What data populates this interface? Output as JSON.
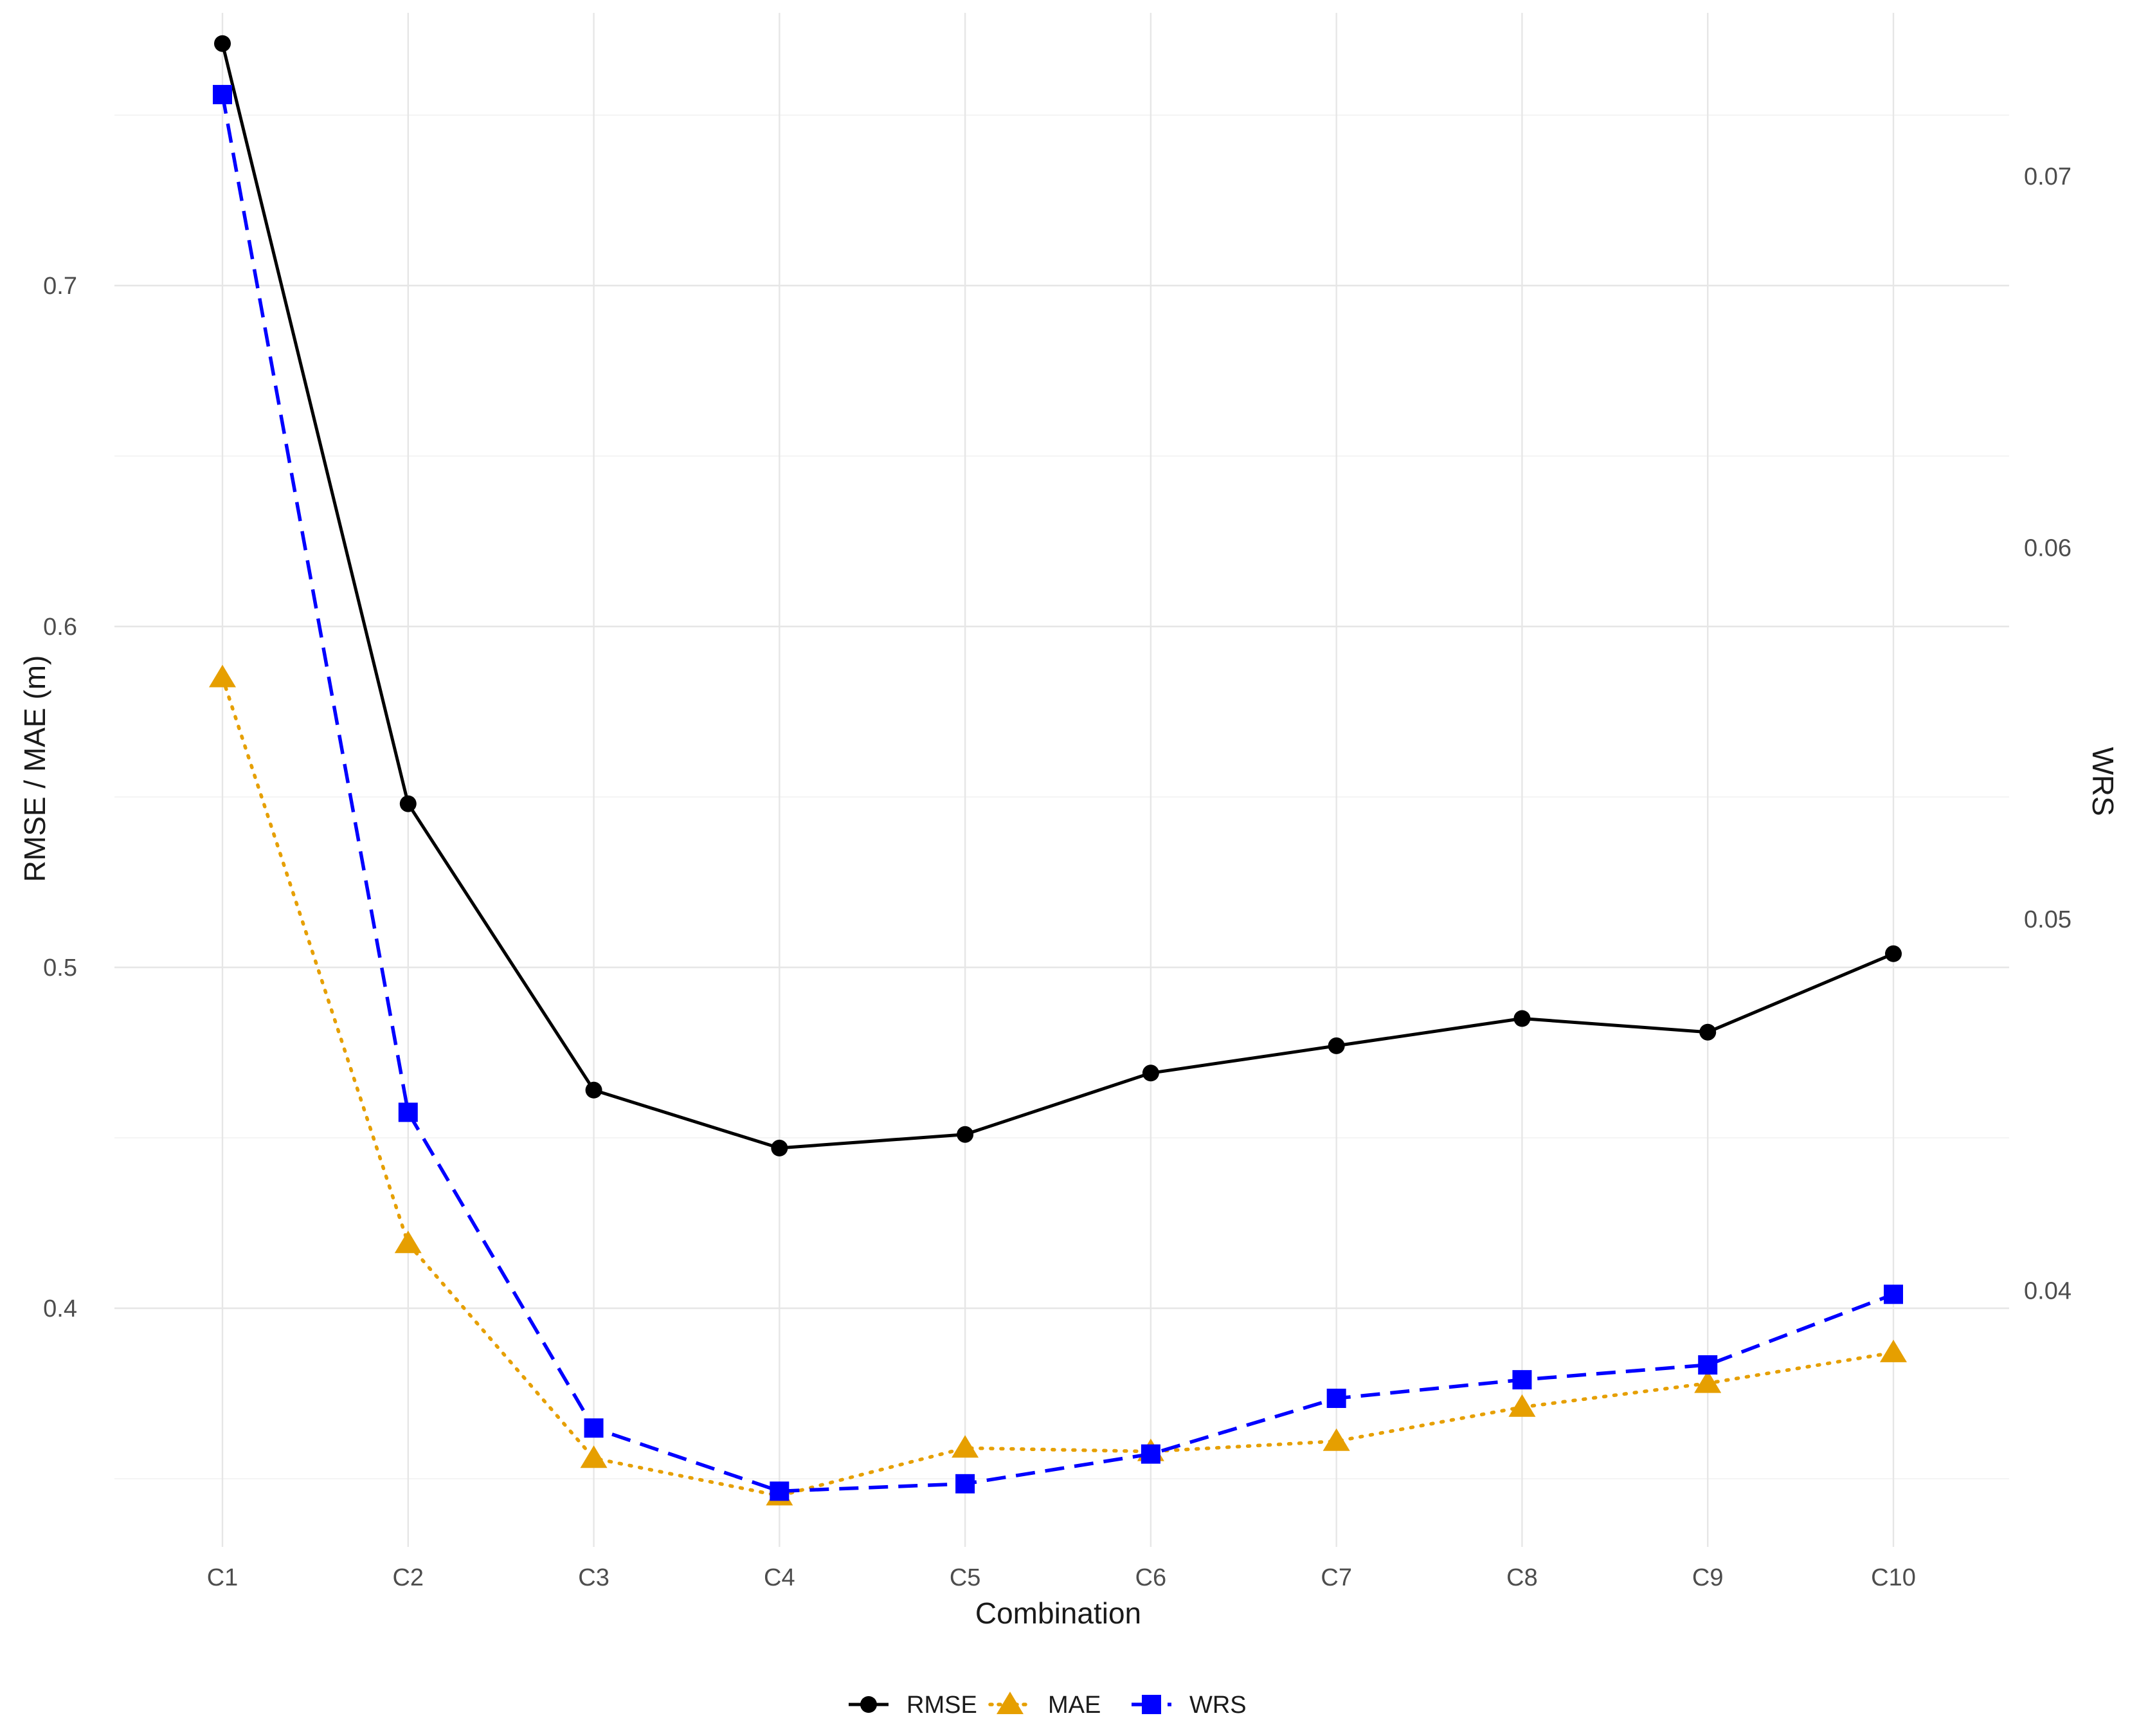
{
  "chart_data": {
    "type": "line",
    "title": "",
    "xlabel": "Combination",
    "ylabel": "RMSE / MAE (m)",
    "ylabel_right": "WRS",
    "categories": [
      "C1",
      "C2",
      "C3",
      "C4",
      "C5",
      "C6",
      "C7",
      "C8",
      "C9",
      "C10"
    ],
    "ylim": [
      0.33,
      0.78
    ],
    "yticks": [
      0.4,
      0.5,
      0.6,
      0.7
    ],
    "ylim_right": [
      0.0331,
      0.0744
    ],
    "yticks_right": [
      0.04,
      0.05,
      0.06,
      0.07
    ],
    "grid": true,
    "legend_position": "bottom",
    "series": [
      {
        "name": "RMSE",
        "axis": "left",
        "color": "#000000",
        "line_style": "solid",
        "marker": "circle",
        "values": [
          0.771,
          0.548,
          0.464,
          0.447,
          0.451,
          0.469,
          0.477,
          0.485,
          0.481,
          0.504
        ]
      },
      {
        "name": "MAE",
        "axis": "left",
        "color": "#e69f00",
        "line_style": "dotted",
        "marker": "triangle",
        "values": [
          0.585,
          0.419,
          0.356,
          0.345,
          0.359,
          0.358,
          0.361,
          0.371,
          0.378,
          0.387
        ]
      },
      {
        "name": "WRS",
        "axis": "right",
        "color": "#0000ff",
        "line_style": "dashed",
        "marker": "square",
        "values": [
          0.0722,
          0.0448,
          0.0363,
          0.0346,
          0.0348,
          0.0356,
          0.0371,
          0.0376,
          0.038,
          0.0399
        ]
      }
    ]
  }
}
